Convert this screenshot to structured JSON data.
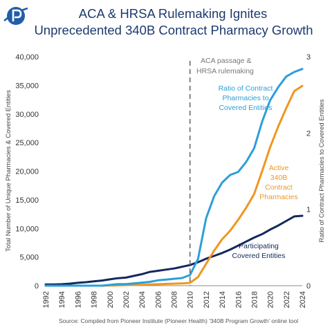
{
  "brand": {
    "logo_color": "#1f5fa8"
  },
  "chart_data": {
    "type": "line",
    "title_lines": [
      "ACA & HRSA Rulemaking Ignites",
      "Unprecedented 340B Contract Pharmacy Growth"
    ],
    "ylabel": "Total Number of Unique  Pharmacies & Covered Entities",
    "y2label": "Ratio of Contract Pharmacies to Covered Entities",
    "ylim": [
      0,
      40000
    ],
    "y2lim": [
      0,
      3
    ],
    "yticks": [
      "0",
      "5,000",
      "10,000",
      "15,000",
      "20,000",
      "25,000",
      "30,000",
      "35,000",
      "40,000"
    ],
    "y2ticks": [
      "0",
      "1",
      "2",
      "3"
    ],
    "xticks": [
      "1992",
      "1994",
      "1996",
      "1998",
      "2000",
      "2002",
      "2004",
      "2006",
      "2008",
      "2010",
      "2012",
      "2014",
      "2016",
      "2018",
      "2020",
      "2022",
      "2024"
    ],
    "x": [
      1992,
      1993,
      1994,
      1995,
      1996,
      1997,
      1998,
      1999,
      2000,
      2001,
      2002,
      2003,
      2004,
      2005,
      2006,
      2007,
      2008,
      2009,
      2010,
      2011,
      2012,
      2013,
      2014,
      2015,
      2016,
      2017,
      2018,
      2019,
      2020,
      2021,
      2022,
      2023,
      2024
    ],
    "grid": false,
    "series": [
      {
        "name": "Participating Covered Entities",
        "axis": "left",
        "color": "#14275e",
        "values": [
          200,
          200,
          250,
          350,
          500,
          600,
          750,
          900,
          1100,
          1300,
          1400,
          1700,
          2000,
          2400,
          2600,
          2800,
          3000,
          3300,
          3600,
          4100,
          4700,
          5200,
          5700,
          6300,
          7000,
          7700,
          8400,
          9000,
          9800,
          10500,
          11300,
          12100,
          12200
        ]
      },
      {
        "name": "Active 340B Contract Pharmacies",
        "axis": "left",
        "color": "#f0961e",
        "values": [
          0,
          0,
          0,
          0,
          0,
          0,
          0,
          0,
          20,
          50,
          80,
          120,
          150,
          200,
          250,
          300,
          350,
          400,
          500,
          1500,
          3800,
          6100,
          8100,
          9600,
          11500,
          13600,
          16000,
          20000,
          24200,
          27800,
          31000,
          34000,
          34900
        ]
      },
      {
        "name": "Ratio of Contract Pharmacies to Covered Entities",
        "axis": "right",
        "color": "#2b9fd9",
        "values": [
          0,
          0,
          0,
          0,
          0,
          0,
          0,
          0,
          0.01,
          0.02,
          0.02,
          0.03,
          0.04,
          0.05,
          0.07,
          0.08,
          0.09,
          0.1,
          0.14,
          0.35,
          0.88,
          1.17,
          1.35,
          1.45,
          1.49,
          1.62,
          1.8,
          2.15,
          2.43,
          2.6,
          2.74,
          2.8,
          2.84
        ]
      }
    ],
    "annotations": {
      "vline_x": 2010,
      "aca": [
        "ACA passage &",
        "HRSA rulemaking"
      ],
      "ratio": [
        "Ratio of Contract",
        "Pharmacies to",
        "Covered Entities"
      ],
      "active": [
        "Active",
        "340B",
        "Contract",
        "Pharmacies"
      ],
      "participating": [
        "Participating",
        "Covered Entities"
      ]
    }
  },
  "source": "Source: Compiled from Pioneer Institute (Pioneer Health) '340B Program Growth' online tool"
}
